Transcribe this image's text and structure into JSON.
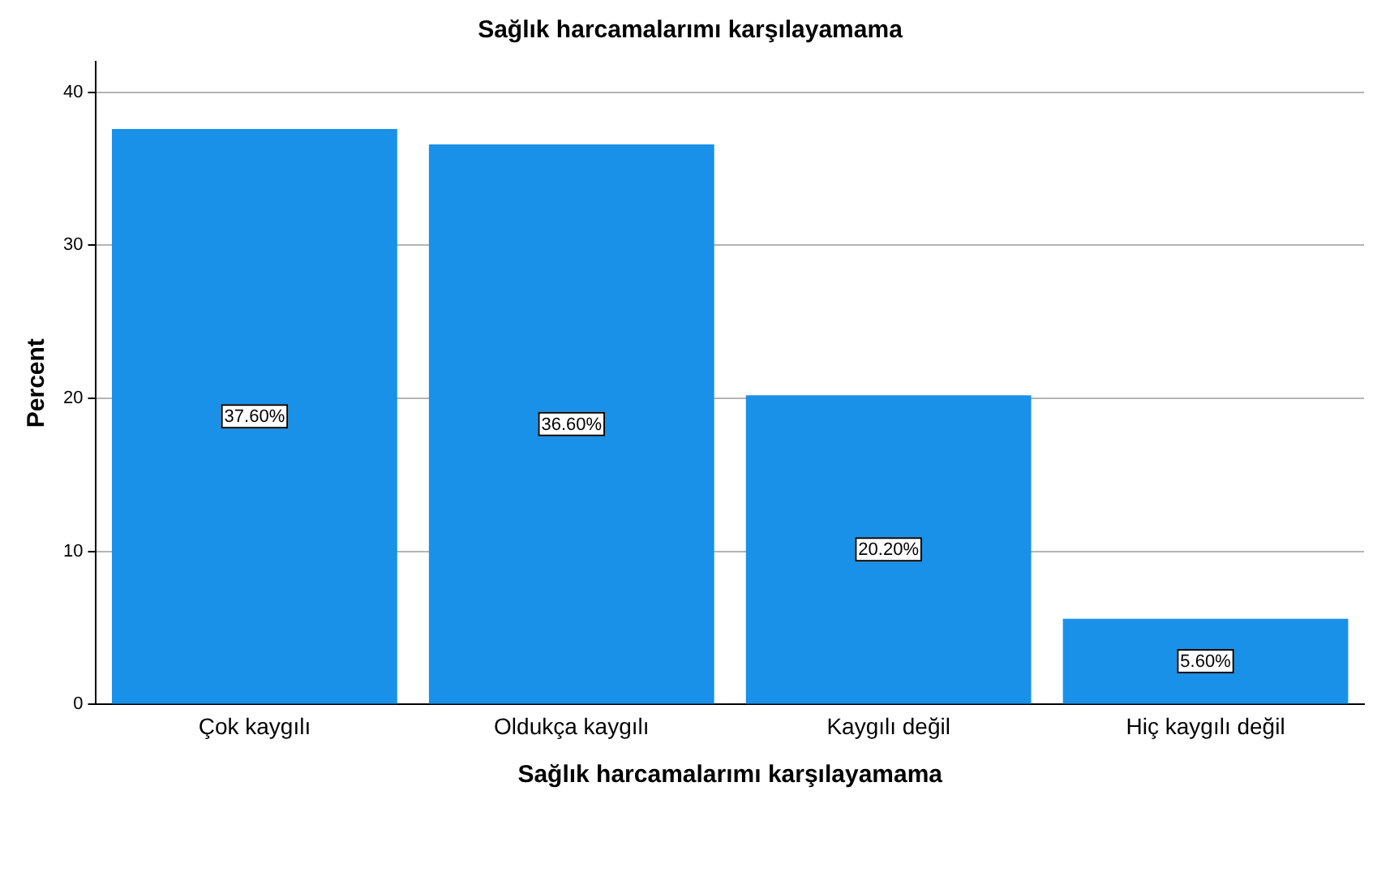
{
  "chart_data": {
    "type": "bar",
    "title": "Sağlık harcamalarımı karşılayamama",
    "xlabel": "Sağlık harcamalarımı karşılayamama",
    "ylabel": "Percent",
    "categories": [
      "Çok kaygılı",
      "Oldukça kaygılı",
      "Kaygılı değil",
      "Hiç kaygılı değil"
    ],
    "values": [
      37.6,
      36.6,
      20.2,
      5.6
    ],
    "color": "#1991e8",
    "value_labels": [
      "37.60%",
      "36.60%",
      "20.20%",
      "5.60%"
    ],
    "ylim": [
      0,
      42
    ],
    "yticks": [
      0,
      10,
      20,
      30,
      40
    ],
    "grid": "y"
  }
}
